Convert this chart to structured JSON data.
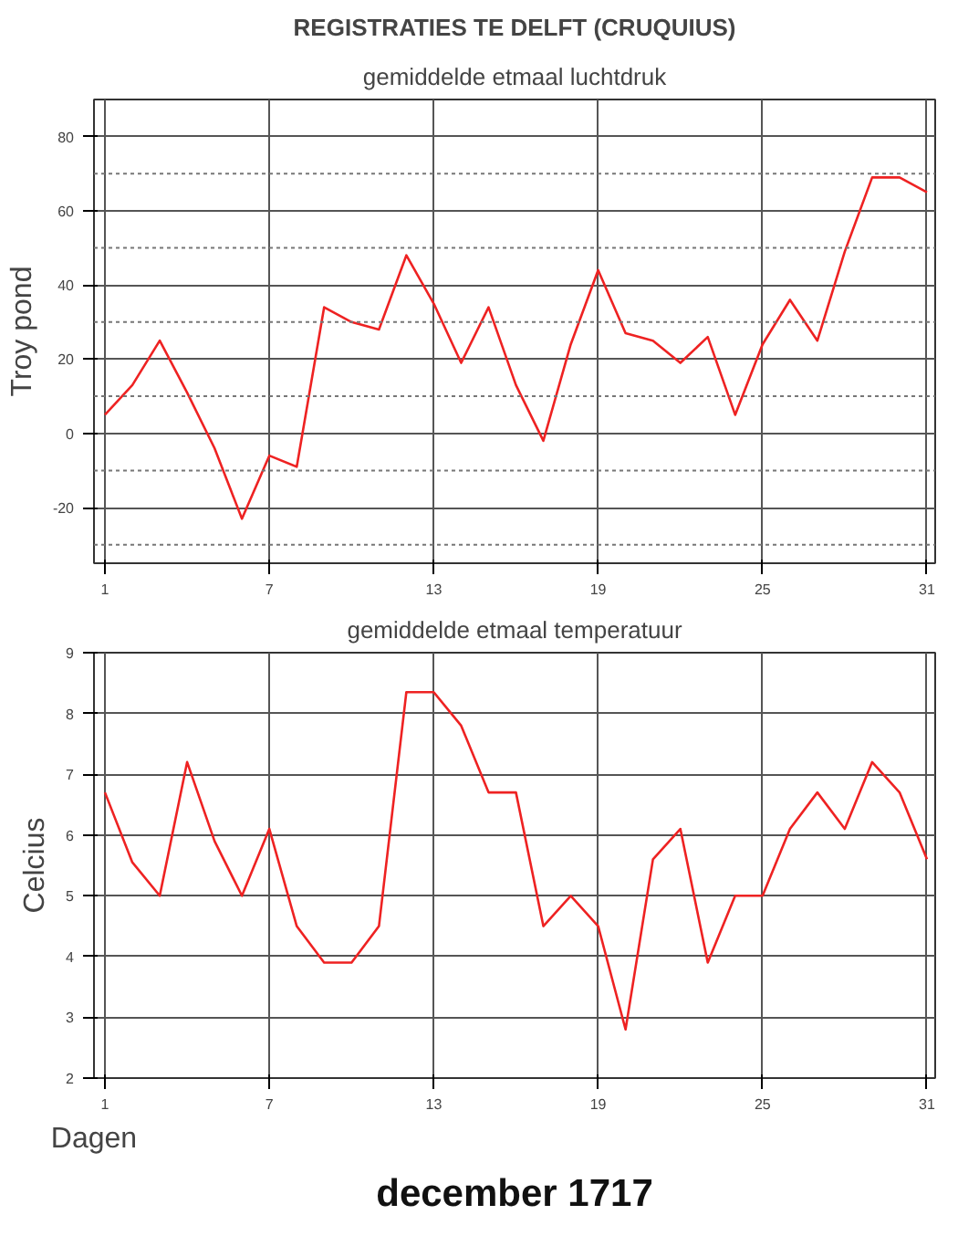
{
  "chart_data": [
    {
      "type": "line",
      "title": "REGISTRATIES TE DELFT (CRUQUIUS)",
      "subtitle": "gemiddelde etmaal luchtdruk",
      "ylabel": "Troy pond",
      "x": [
        1,
        2,
        3,
        4,
        5,
        6,
        7,
        8,
        9,
        10,
        11,
        12,
        13,
        14,
        15,
        16,
        17,
        18,
        19,
        20,
        21,
        22,
        23,
        24,
        25,
        26,
        27,
        28,
        29,
        30,
        31
      ],
      "series": [
        {
          "color": "#ee2222",
          "values": [
            5,
            13,
            25,
            11,
            -4,
            -23,
            -6,
            -9,
            34,
            30,
            28,
            48,
            35,
            19,
            34,
            13,
            -2,
            24,
            44,
            27,
            25,
            19,
            26,
            5,
            24,
            36,
            25,
            49,
            69,
            69,
            65
          ]
        }
      ],
      "xlim": [
        0.6,
        31.3
      ],
      "xticks": [
        1,
        7,
        13,
        19,
        25,
        31
      ],
      "ylim": [
        -35,
        90
      ],
      "yticks": [
        {
          "value": -30,
          "label": null
        },
        -20,
        {
          "value": -10,
          "label": null
        },
        0,
        {
          "value": 10,
          "label": null
        },
        20,
        {
          "value": 30,
          "label": null
        },
        40,
        {
          "value": 50,
          "label": null
        },
        60,
        {
          "value": 70,
          "label": null
        },
        80
      ],
      "grid": true,
      "marker": "none",
      "line_style": "solid"
    },
    {
      "type": "line",
      "title": "gemiddelde etmaal temperatuur",
      "xlabel": "Dagen",
      "ylabel": "Celcius",
      "annotations": [
        "december 1717"
      ],
      "x": [
        1,
        2,
        3,
        4,
        5,
        6,
        7,
        8,
        9,
        10,
        11,
        12,
        13,
        14,
        15,
        16,
        17,
        18,
        19,
        20,
        21,
        22,
        23,
        24,
        25,
        26,
        27,
        28,
        29,
        30,
        31
      ],
      "series": [
        {
          "color": "#ee2222",
          "values": [
            6.7,
            5.55,
            5.0,
            7.2,
            5.9,
            5.0,
            6.1,
            4.5,
            3.9,
            3.9,
            4.5,
            8.35,
            8.35,
            7.8,
            6.7,
            6.7,
            4.5,
            5.0,
            4.5,
            2.8,
            5.6,
            6.1,
            3.9,
            5.0,
            5.0,
            6.1,
            6.7,
            6.1,
            7.2,
            6.7,
            5.6
          ]
        }
      ],
      "xlim": [
        0.6,
        31.3
      ],
      "xticks": [
        1,
        7,
        13,
        19,
        25,
        31
      ],
      "ylim": [
        2,
        9
      ],
      "yticks": [
        2,
        3,
        4,
        5,
        6,
        7,
        8,
        9
      ],
      "grid": true,
      "marker": "none",
      "line_style": "solid"
    }
  ]
}
